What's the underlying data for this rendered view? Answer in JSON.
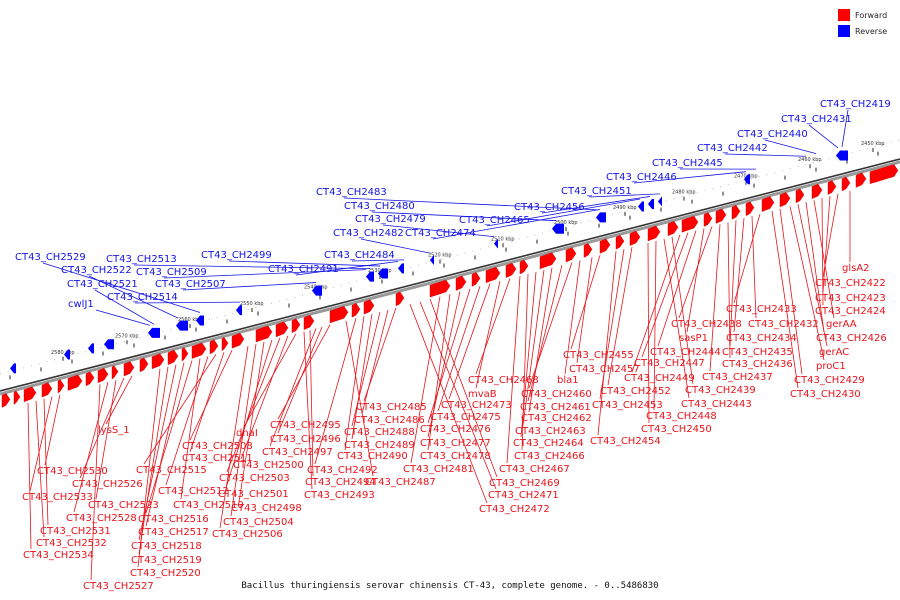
{
  "legend": {
    "forward": {
      "label": "Forward",
      "color": "#ff0000"
    },
    "reverse": {
      "label": "Reverse",
      "color": "#0000ff"
    }
  },
  "caption": "Bacillus thuringiensis serovar chinensis CT-43, complete genome. - 0..5486830",
  "tick_labels": [
    "2450 kbp",
    "2460 kbp",
    "2470 kbp",
    "2480 kbp",
    "2490 kbp",
    "2500 kbp",
    "2510 kbp",
    "2520 kbp",
    "2530 kbp",
    "2540 kbp",
    "2550 kbp",
    "2560 kbp",
    "2570 kbp",
    "2580 kbp"
  ],
  "forward_labels": [
    "glsA2",
    "CT43_CH2422",
    "CT43_CH2423",
    "CT43_CH2424",
    "gerAA",
    "CT43_CH2426",
    "gerAC",
    "proC1",
    "CT43_CH2429",
    "CT43_CH2430",
    "CT43_CH2433",
    "CT43_CH2432",
    "CT43_CH2434",
    "CT43_CH2435",
    "CT43_CH2436",
    "CT43_CH2437",
    "CT43_CH2438",
    "sasP1",
    "CT43_CH2444",
    "CT43_CH2447",
    "CT43_CH2449",
    "CT43_CH2439",
    "CT43_CH2443",
    "CT43_CH2448",
    "CT43_CH2450",
    "CT43_CH2452",
    "CT43_CH2453",
    "CT43_CH2454",
    "CT43_CH2455",
    "CT43_CH2457",
    "bla1",
    "CT43_CH2460",
    "CT43_CH2461",
    "CT43_CH2462",
    "CT43_CH2463",
    "CT43_CH2464",
    "CT43_CH2466",
    "CT43_CH2467",
    "CT43_CH2468",
    "mvaB",
    "CT43_CH2473",
    "CT43_CH2475",
    "CT43_CH2476",
    "CT43_CH2477",
    "CT43_CH2478",
    "CT43_CH2481",
    "CT43_CH2469",
    "CT43_CH2471",
    "CT43_CH2472",
    "CT43_CH2485",
    "CT43_CH2486",
    "CT43_CH2488",
    "CT43_CH2489",
    "CT43_CH2490",
    "CT43_CH2492",
    "CT43_CH2487",
    "CT43_CH2495",
    "CT43_CH2496",
    "CT43_CH2497",
    "CT43_CH2494",
    "CT43_CH2493",
    "dnaI",
    "CT43_CH2500",
    "CT43_CH2503",
    "CT43_CH2501",
    "CT43_CH2498",
    "CT43_CH2504",
    "CT43_CH2506",
    "CT43_CH2508",
    "CT43_CH2511",
    "CT43_CH2515",
    "CT43_CH2512",
    "CT43_CH2510",
    "CT43_CH2516",
    "CT43_CH2517",
    "CT43_CH2518",
    "CT43_CH2519",
    "CT43_CH2520",
    "lysS_1",
    "CT43_CH2526",
    "CT43_CH2523",
    "CT43_CH2528",
    "CT43_CH2527",
    "CT43_CH2530",
    "CT43_CH2533",
    "CT43_CH2531",
    "CT43_CH2532",
    "CT43_CH2534"
  ],
  "reverse_labels": [
    "CT43_CH2419",
    "CT43_CH2431",
    "CT43_CH2440",
    "CT43_CH2442",
    "CT43_CH2445",
    "CT43_CH2446",
    "CT43_CH2451",
    "CT43_CH2456",
    "CT43_CH2465",
    "CT43_CH2474",
    "CT43_CH2483",
    "CT43_CH2480",
    "CT43_CH2479",
    "CT43_CH2482",
    "CT43_CH2484",
    "CT43_CH2491",
    "CT43_CH2499",
    "CT43_CH2513",
    "CT43_CH2509",
    "CT43_CH2507",
    "CT43_CH2514",
    "CT43_CH2529",
    "CT43_CH2522",
    "CT43_CH2521",
    "cwlJ1"
  ]
}
